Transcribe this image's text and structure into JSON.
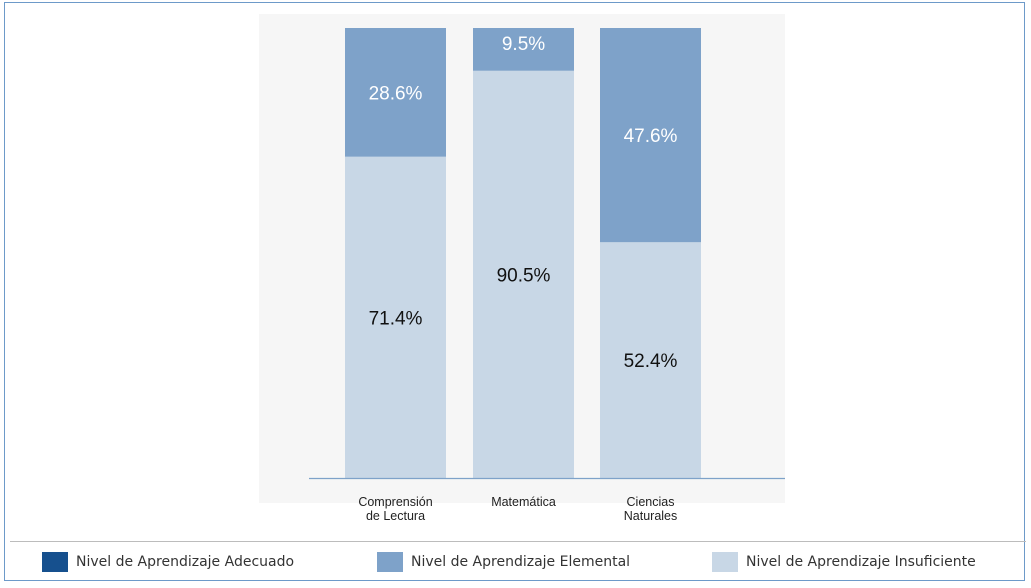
{
  "chart_data": {
    "type": "bar",
    "stacked": true,
    "categories": [
      [
        "Comprensión",
        "de Lectura"
      ],
      [
        "Matemática"
      ],
      [
        "Ciencias",
        "Naturales"
      ]
    ],
    "series": [
      {
        "name": "Nivel de Aprendizaje Adecuado",
        "color": "#16508e",
        "values": [
          0,
          0,
          0
        ]
      },
      {
        "name": "Nivel de Aprendizaje Elemental",
        "color": "#7ea2c9",
        "values": [
          28.6,
          9.5,
          47.6
        ]
      },
      {
        "name": "Nivel de Aprendizaje Insuficiente",
        "color": "#c8d7e6",
        "values": [
          71.4,
          90.5,
          52.4
        ]
      }
    ],
    "data_labels": {
      "Elemental": [
        "28.6%",
        "9.5%",
        "47.6%"
      ],
      "Insuficiente": [
        "71.4%",
        "90.5%",
        "52.4%"
      ]
    },
    "ylim": [
      0,
      100
    ],
    "grid": false,
    "legend_position": "bottom"
  },
  "legend": {
    "items": [
      {
        "label": "Nivel de Aprendizaje Adecuado",
        "color": "#16508e"
      },
      {
        "label": "Nivel de Aprendizaje Elemental",
        "color": "#7ea2c9"
      },
      {
        "label": "Nivel de Aprendizaje Insuficiente",
        "color": "#c8d7e6"
      }
    ]
  }
}
